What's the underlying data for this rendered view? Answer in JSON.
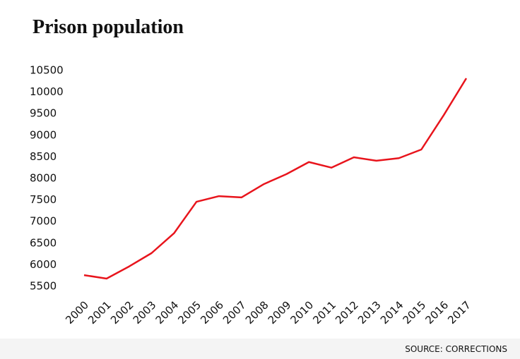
{
  "chart_data": {
    "type": "line",
    "title": "Prison population",
    "source": "SOURCE: CORRECTIONS",
    "categories": [
      "2000",
      "2001",
      "2002",
      "2003",
      "2004",
      "2005",
      "2006",
      "2007",
      "2008",
      "2009",
      "2010",
      "2011",
      "2012",
      "2013",
      "2014",
      "2015",
      "2016",
      "2017"
    ],
    "series": [
      {
        "name": "Prison population",
        "color": "#e8141c",
        "values": [
          5760,
          5680,
          5960,
          6270,
          6730,
          7460,
          7590,
          7560,
          7870,
          8100,
          8380,
          8250,
          8490,
          8410,
          8470,
          8670,
          9470,
          10320
        ]
      }
    ],
    "ylim": [
      5500,
      10500
    ],
    "yticks": [
      5500,
      6000,
      6500,
      7000,
      7500,
      8000,
      8500,
      9000,
      9500,
      10000,
      10500
    ],
    "grid": false
  }
}
